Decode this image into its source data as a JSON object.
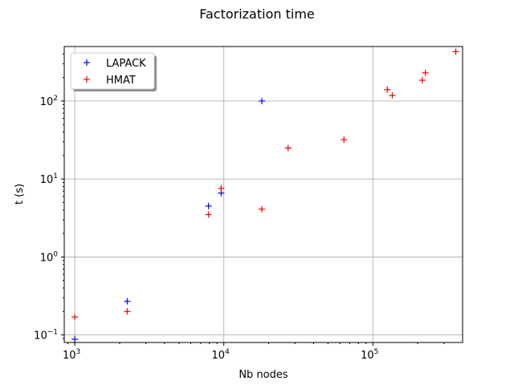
{
  "chart_data": {
    "type": "scatter",
    "title": "Factorization time",
    "xlabel": "Nb nodes",
    "ylabel": "t (s)",
    "xscale": "log",
    "yscale": "log",
    "xlim": [
      850,
      400000
    ],
    "ylim": [
      0.08,
      500
    ],
    "grid": true,
    "legend_position": "top-left",
    "marker": "+",
    "x_ticks": [
      {
        "base": "10",
        "exp": "3",
        "value": 1000
      },
      {
        "base": "10",
        "exp": "4",
        "value": 10000
      },
      {
        "base": "10",
        "exp": "5",
        "value": 100000
      }
    ],
    "y_ticks": [
      {
        "base": "10",
        "exp": "−1",
        "value": 0.1
      },
      {
        "base": "10",
        "exp": "0",
        "value": 1
      },
      {
        "base": "10",
        "exp": "1",
        "value": 10
      },
      {
        "base": "10",
        "exp": "2",
        "value": 100
      }
    ],
    "series": [
      {
        "name": "LAPACK",
        "color": "#0000ff",
        "points": [
          {
            "x": 1000,
            "y": 0.088
          },
          {
            "x": 2250,
            "y": 0.27
          },
          {
            "x": 7900,
            "y": 4.5
          },
          {
            "x": 9600,
            "y": 6.6
          },
          {
            "x": 18000,
            "y": 100
          }
        ]
      },
      {
        "name": "HMAT",
        "color": "#ff0000",
        "points": [
          {
            "x": 1000,
            "y": 0.17
          },
          {
            "x": 2250,
            "y": 0.2
          },
          {
            "x": 7900,
            "y": 3.5
          },
          {
            "x": 9600,
            "y": 7.6
          },
          {
            "x": 18000,
            "y": 4.1
          },
          {
            "x": 27000,
            "y": 25
          },
          {
            "x": 64000,
            "y": 32
          },
          {
            "x": 125000,
            "y": 140
          },
          {
            "x": 135000,
            "y": 118
          },
          {
            "x": 215000,
            "y": 185
          },
          {
            "x": 225000,
            "y": 230
          },
          {
            "x": 360000,
            "y": 430
          }
        ]
      }
    ]
  }
}
